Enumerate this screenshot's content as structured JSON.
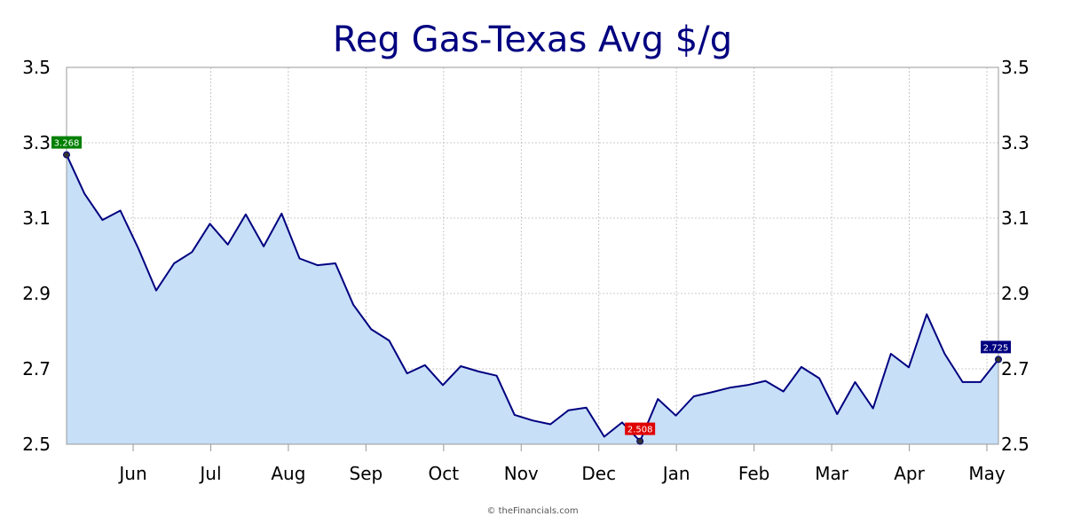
{
  "chart_data": {
    "type": "area",
    "title": "Reg Gas-Texas Avg $/g",
    "xlabel": "",
    "ylabel": "",
    "ylim": [
      2.5,
      3.5
    ],
    "yticks": [
      "2.5",
      "2.7",
      "2.9",
      "3.1",
      "3.3",
      "3.5"
    ],
    "xtick_labels": [
      "Jun",
      "Jul",
      "Aug",
      "Sep",
      "Oct",
      "Nov",
      "Dec",
      "Jan",
      "Feb",
      "Mar",
      "Apr",
      "May"
    ],
    "grid": true,
    "series": [
      {
        "values": [
          3.268,
          3.165,
          3.095,
          3.12,
          3.02,
          2.908,
          2.98,
          3.01,
          3.085,
          3.03,
          3.11,
          3.025,
          3.112,
          2.993,
          2.975,
          2.98,
          2.87,
          2.805,
          2.775,
          2.688,
          2.71,
          2.657,
          2.707,
          2.693,
          2.682,
          2.578,
          2.563,
          2.553,
          2.59,
          2.597,
          2.52,
          2.558,
          2.508,
          2.62,
          2.576,
          2.627,
          2.638,
          2.65,
          2.657,
          2.668,
          2.64,
          2.705,
          2.675,
          2.58,
          2.665,
          2.595,
          2.74,
          2.704,
          2.845,
          2.74,
          2.665,
          2.665,
          2.725
        ]
      }
    ],
    "annotations": [
      {
        "label": "3.268",
        "index": 0,
        "color": "#008000"
      },
      {
        "label": "2.508",
        "index": 32,
        "color": "#e00000"
      },
      {
        "label": "2.725",
        "index": 52,
        "color": "#000080"
      }
    ],
    "colors": {
      "line": "#000080",
      "fill": "#c7dff7",
      "grid": "#bbbbbb"
    }
  },
  "credit": "© theFinancials.com"
}
